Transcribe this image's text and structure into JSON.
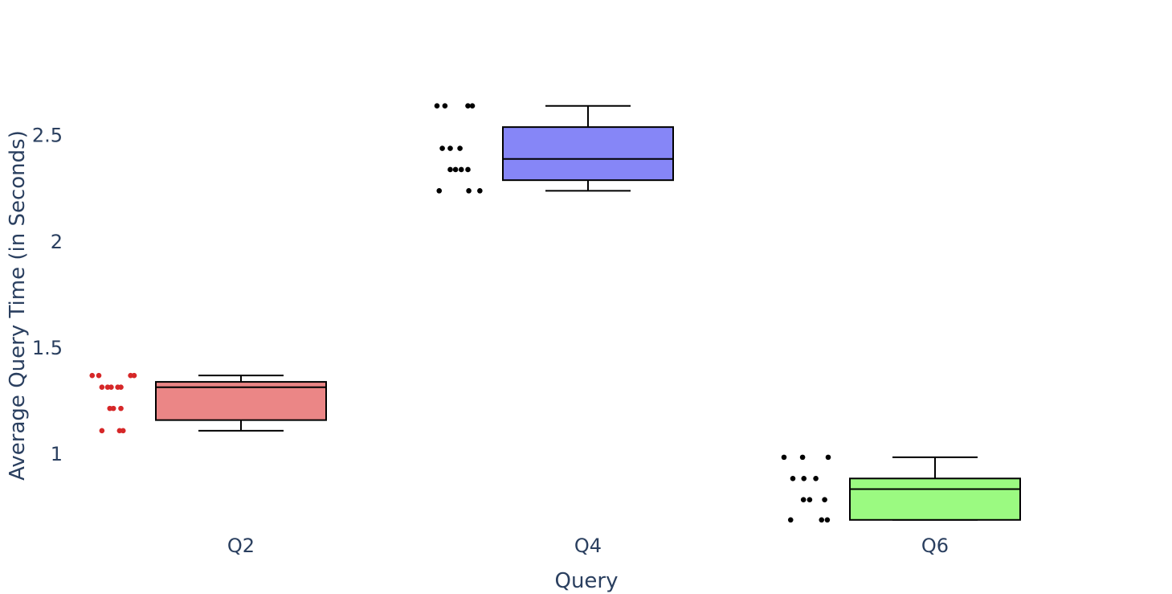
{
  "chart_data": {
    "type": "box",
    "title": "",
    "xlabel": "Query",
    "ylabel": "Average Query Time (in Seconds)",
    "categories": [
      "Q2",
      "Q4",
      "Q6"
    ],
    "yticks": [
      1,
      1.5,
      2,
      2.5
    ],
    "ytick_labels": [
      "1",
      "1.5",
      "2",
      "2.5"
    ],
    "ylim": [
      0.64,
      2.76
    ],
    "grid": false,
    "legend": "none",
    "series": [
      {
        "category": "Q2",
        "min": 1.11,
        "q1": 1.16,
        "median": 1.315,
        "q3": 1.34,
        "max": 1.37,
        "fill": "#eb8686",
        "point_color": "#d62728",
        "points": [
          {
            "x": 0.05,
            "y": 1.37
          },
          {
            "x": 0.2,
            "y": 1.37
          },
          {
            "x": 0.92,
            "y": 1.37
          },
          {
            "x": 1.0,
            "y": 1.37
          },
          {
            "x": 0.27,
            "y": 1.315
          },
          {
            "x": 0.4,
            "y": 1.315
          },
          {
            "x": 0.48,
            "y": 1.315
          },
          {
            "x": 0.63,
            "y": 1.315
          },
          {
            "x": 0.7,
            "y": 1.315
          },
          {
            "x": 0.45,
            "y": 1.215
          },
          {
            "x": 0.53,
            "y": 1.215
          },
          {
            "x": 0.7,
            "y": 1.215
          },
          {
            "x": 0.27,
            "y": 1.11
          },
          {
            "x": 0.67,
            "y": 1.11
          },
          {
            "x": 0.75,
            "y": 1.11
          }
        ]
      },
      {
        "category": "Q4",
        "min": 2.24,
        "q1": 2.29,
        "median": 2.39,
        "q3": 2.54,
        "max": 2.64,
        "fill": "#8686f7",
        "point_color": "#000000",
        "points": [
          {
            "x": 0.0,
            "y": 2.64
          },
          {
            "x": 0.18,
            "y": 2.64
          },
          {
            "x": 0.7,
            "y": 2.64
          },
          {
            "x": 0.8,
            "y": 2.64
          },
          {
            "x": 0.12,
            "y": 2.44
          },
          {
            "x": 0.3,
            "y": 2.44
          },
          {
            "x": 0.52,
            "y": 2.44
          },
          {
            "x": 0.3,
            "y": 2.34
          },
          {
            "x": 0.42,
            "y": 2.34
          },
          {
            "x": 0.55,
            "y": 2.34
          },
          {
            "x": 0.7,
            "y": 2.34
          },
          {
            "x": 0.05,
            "y": 2.24
          },
          {
            "x": 0.72,
            "y": 2.24
          },
          {
            "x": 0.97,
            "y": 2.24
          }
        ]
      },
      {
        "category": "Q6",
        "min": 0.69,
        "q1": 0.69,
        "median": 0.835,
        "q3": 0.885,
        "max": 0.985,
        "fill": "#9bfa81",
        "point_color": "#000000",
        "points": [
          {
            "x": 0.0,
            "y": 0.985
          },
          {
            "x": 0.42,
            "y": 0.985
          },
          {
            "x": 1.0,
            "y": 0.985
          },
          {
            "x": 0.2,
            "y": 0.885
          },
          {
            "x": 0.45,
            "y": 0.885
          },
          {
            "x": 0.72,
            "y": 0.885
          },
          {
            "x": 0.44,
            "y": 0.785
          },
          {
            "x": 0.58,
            "y": 0.785
          },
          {
            "x": 0.92,
            "y": 0.785
          },
          {
            "x": 0.15,
            "y": 0.69
          },
          {
            "x": 0.85,
            "y": 0.69
          },
          {
            "x": 0.98,
            "y": 0.69
          }
        ]
      }
    ]
  }
}
